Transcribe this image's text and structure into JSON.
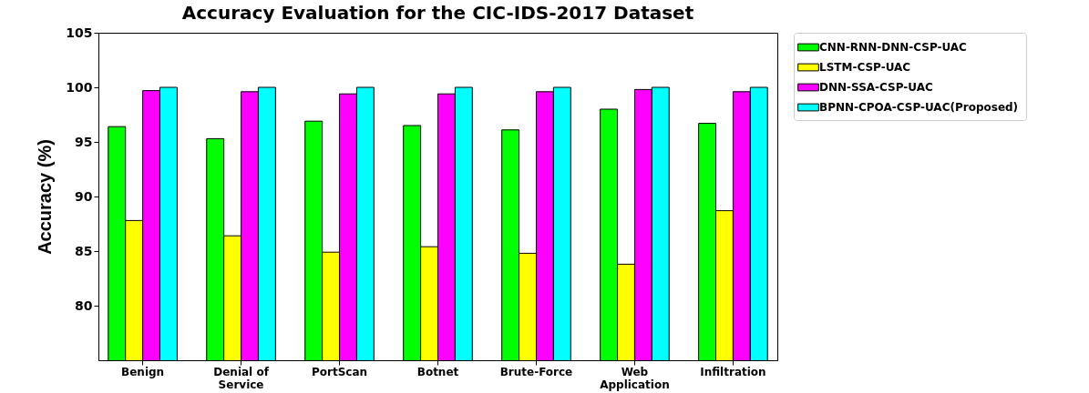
{
  "chart_data": {
    "type": "bar",
    "title": "Accuracy Evaluation for the CIC-IDS-2017 Dataset",
    "ylabel": "Accuracy (%)",
    "categories": [
      "Benign",
      "Denial of Service",
      "PortScan",
      "Botnet",
      "Brute-Force",
      "Web Application",
      "Infiltration"
    ],
    "series": [
      {
        "name": "CNN-RNN-DNN-CSP-UAC",
        "color": "#00ff00",
        "values": [
          96.4,
          95.3,
          96.9,
          96.5,
          96.1,
          98.0,
          96.7
        ]
      },
      {
        "name": "LSTM-CSP-UAC",
        "color": "#ffff00",
        "values": [
          87.8,
          86.4,
          84.9,
          85.4,
          84.8,
          83.8,
          88.7
        ]
      },
      {
        "name": "DNN-SSA-CSP-UAC",
        "color": "#ff00ff",
        "values": [
          99.7,
          99.6,
          99.4,
          99.4,
          99.6,
          99.8,
          99.6
        ]
      },
      {
        "name": "BPNN-CPOA-CSP-UAC(Proposed)",
        "color": "#00ffff",
        "values": [
          100,
          100,
          100,
          100,
          100,
          100,
          100
        ]
      }
    ],
    "ylim": [
      75,
      105
    ],
    "yticks": [
      80,
      85,
      90,
      95,
      100,
      105
    ],
    "grid": false,
    "legend": "right"
  }
}
